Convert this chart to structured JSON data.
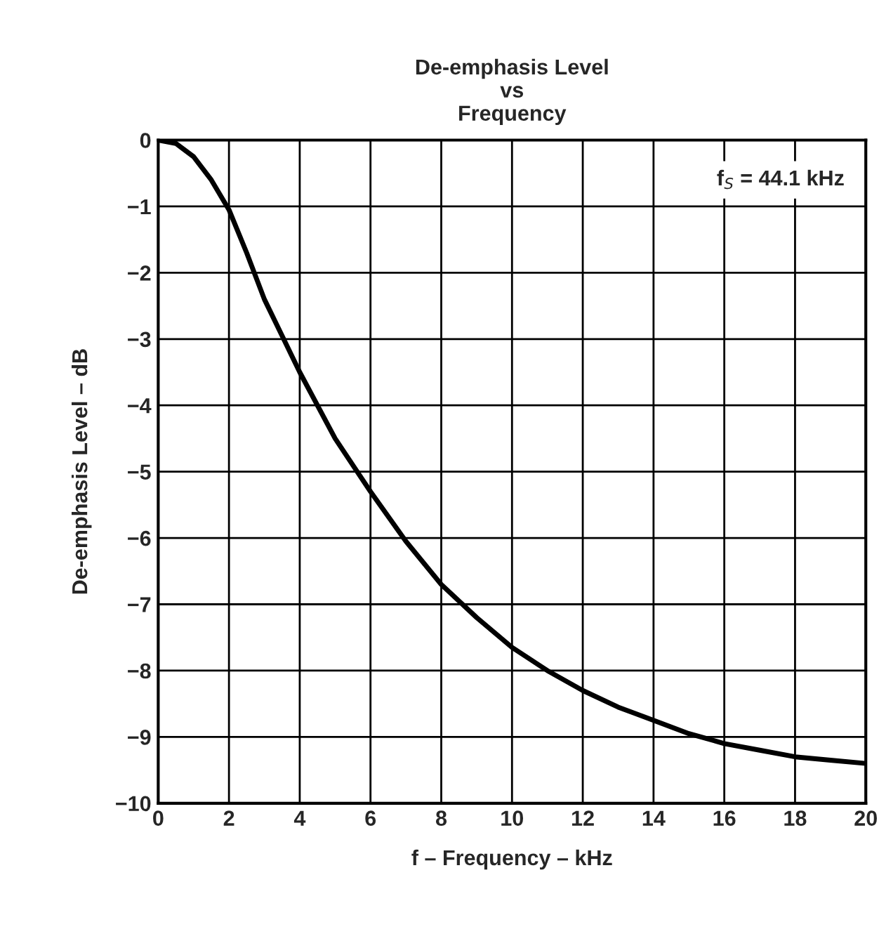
{
  "chart_data": {
    "type": "line",
    "title": "De-emphasis Level\nvs\nFrequency",
    "xlabel": "f – Frequency – kHz",
    "ylabel": "De-emphasis Level – dB",
    "annotations": [
      "f$_{S}$ = 44.1 kHz"
    ],
    "series": [
      {
        "color": "#000000",
        "x": [
          0,
          0.5,
          1,
          1.5,
          2,
          2.5,
          3,
          3.5,
          4,
          5,
          6,
          7,
          8,
          9,
          10,
          11,
          12,
          13,
          14,
          15,
          16,
          17,
          18,
          19,
          20
        ],
        "values": [
          0,
          -0.05,
          -0.25,
          -0.6,
          -1.05,
          -1.7,
          -2.4,
          -2.95,
          -3.5,
          -4.5,
          -5.3,
          -6.05,
          -6.7,
          -7.2,
          -7.65,
          -8.0,
          -8.3,
          -8.55,
          -8.75,
          -8.95,
          -9.1,
          -9.2,
          -9.3,
          -9.35,
          -9.4
        ]
      }
    ],
    "xlim": [
      0,
      20
    ],
    "xticks": [
      0,
      2,
      4,
      6,
      8,
      10,
      12,
      14,
      16,
      18,
      20
    ],
    "ylim": [
      -10,
      0
    ],
    "yticks": [
      {
        "value": 0,
        "label": "0"
      },
      {
        "value": -1,
        "label": "−1"
      },
      {
        "value": -2,
        "label": "−2"
      },
      {
        "value": -3,
        "label": "−3"
      },
      {
        "value": -4,
        "label": "−4"
      },
      {
        "value": -5,
        "label": "−5"
      },
      {
        "value": -6,
        "label": "−6"
      },
      {
        "value": -7,
        "label": "−7"
      },
      {
        "value": -8,
        "label": "−8"
      },
      {
        "value": -9,
        "label": "−9"
      },
      {
        "value": -10,
        "label": "−10"
      }
    ],
    "grid": true,
    "legend": false,
    "marker": "none",
    "line_style": "solid"
  }
}
